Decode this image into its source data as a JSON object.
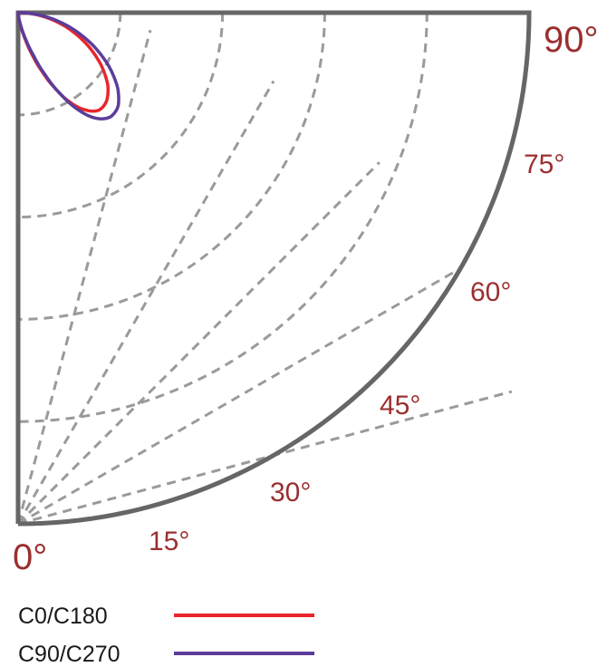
{
  "chart_data": {
    "type": "polar",
    "title": "",
    "angle_range_deg": [
      0,
      90
    ],
    "angle_tick_labels": [
      {
        "angle": 0,
        "label": "0°"
      },
      {
        "angle": 15,
        "label": "15°"
      },
      {
        "angle": 30,
        "label": "30°"
      },
      {
        "angle": 45,
        "label": "45°"
      },
      {
        "angle": 60,
        "label": "60°"
      },
      {
        "angle": 75,
        "label": "75°"
      },
      {
        "angle": 90,
        "label": "90°"
      }
    ],
    "grid": true,
    "radial_rings": 5,
    "legend_position": "bottom-left",
    "series": [
      {
        "name": "C0/C180",
        "color": "#e8262b",
        "angles": [
          0,
          5,
          10,
          15,
          20,
          25,
          30,
          35,
          40,
          45,
          50,
          55,
          60,
          65,
          70,
          75,
          80,
          85,
          90
        ],
        "values": [
          1.0,
          0.99,
          0.97,
          0.93,
          0.87,
          0.79,
          0.69,
          0.58,
          0.46,
          0.35,
          0.25,
          0.17,
          0.11,
          0.065,
          0.035,
          0.017,
          0.007,
          0.002,
          0.0
        ]
      },
      {
        "name": "C90/C270",
        "color": "#5b3d9a",
        "angles": [
          0,
          5,
          10,
          15,
          20,
          25,
          30,
          35,
          40,
          45,
          50,
          55,
          60,
          65,
          70,
          75,
          80,
          85,
          90
        ],
        "values": [
          1.0,
          0.99,
          0.97,
          0.94,
          0.89,
          0.82,
          0.73,
          0.62,
          0.5,
          0.38,
          0.27,
          0.18,
          0.11,
          0.065,
          0.035,
          0.017,
          0.007,
          0.002,
          0.0
        ]
      }
    ]
  }
}
